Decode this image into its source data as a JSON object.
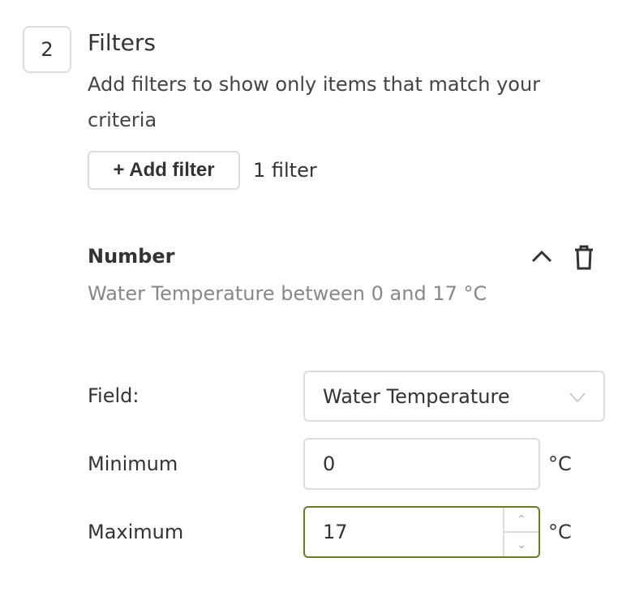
{
  "step": {
    "number": "2",
    "title": "Filters",
    "description": "Add filters to show only items that match your criteria"
  },
  "add_filter_label": "+ Add filter",
  "filter_count": "1 filter",
  "filter": {
    "type": "Number",
    "summary": "Water Temperature between 0 and 17 °C",
    "icons": {
      "collapse": "chevron-up-icon",
      "delete": "trash-icon"
    },
    "field_label": "Field:",
    "field_value": "Water Temperature",
    "minimum_label": "Minimum",
    "minimum_value": "0",
    "maximum_label": "Maximum",
    "maximum_value": "17",
    "unit": "°C"
  },
  "colors": {
    "focus_border": "#6b7d1a"
  }
}
